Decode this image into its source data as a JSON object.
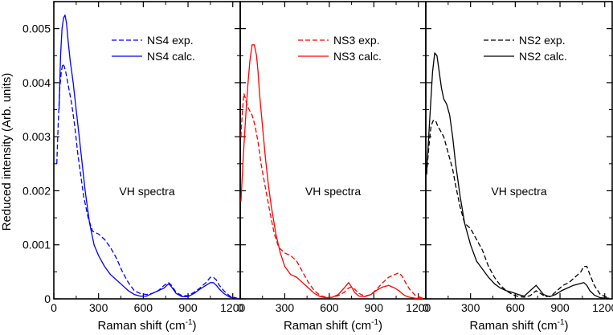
{
  "chart_data": {
    "type": "line",
    "ylabel": "Reduced intensity  (Arb. units)",
    "xlim": [
      0,
      1250
    ],
    "ylim": [
      0,
      0.0055
    ],
    "xticks": [
      0,
      300,
      600,
      900,
      1200
    ],
    "yticks": [
      0,
      0.001,
      0.002,
      0.003,
      0.004,
      0.005
    ],
    "xtick_labels": [
      "0",
      "300",
      "600",
      "900",
      "1200"
    ],
    "ytick_labels": [
      "0",
      "0.001",
      "0.002",
      "0.003",
      "0.004",
      "0.005"
    ],
    "panels": [
      {
        "id": "ns4",
        "annotation": "VH spectra",
        "xlabel": "Raman shift (cm-1)",
        "xlabel_main": "Raman shift (cm",
        "xlabel_sup": "-1",
        "xlabel_close": ")",
        "legend_position": "top-right",
        "series": [
          {
            "name": "NS4 exp.",
            "style": "dashed",
            "color": "#0000ff",
            "x": [
              20,
              30,
              40,
              50,
              60,
              70,
              80,
              100,
              120,
              140,
              160,
              180,
              200,
              230,
              260,
              300,
              340,
              380,
              420,
              460,
              500,
              540,
              580,
              620,
              660,
              700,
              740,
              770,
              790,
              820,
              860,
              900,
              940,
              980,
              1020,
              1050,
              1070,
              1090,
              1110,
              1140,
              1180,
              1230
            ],
            "y": [
              0.0025,
              0.0033,
              0.0039,
              0.0042,
              0.00435,
              0.0043,
              0.0042,
              0.0039,
              0.0036,
              0.0032,
              0.0027,
              0.0023,
              0.0019,
              0.0015,
              0.00125,
              0.0012,
              0.0011,
              0.00095,
              0.00075,
              0.0005,
              0.0003,
              0.00015,
              0.0001,
              8e-05,
              0.0001,
              0.00015,
              0.00025,
              0.0003,
              0.00025,
              0.00012,
              6e-05,
              6e-05,
              0.00012,
              0.0002,
              0.0003,
              0.0004,
              0.0004,
              0.00035,
              0.00025,
              0.00015,
              5e-05,
              1e-05
            ]
          },
          {
            "name": "NS4 calc.",
            "style": "solid",
            "color": "#0000ff",
            "x": [
              35,
              45,
              55,
              65,
              75,
              85,
              95,
              110,
              130,
              150,
              170,
              190,
              210,
              240,
              270,
              300,
              340,
              380,
              420,
              460,
              500,
              540,
              580,
              620,
              660,
              700,
              740,
              770,
              790,
              820,
              860,
              900,
              940,
              980,
              1020,
              1050,
              1070,
              1090,
              1110,
              1140,
              1180,
              1230
            ],
            "y": [
              0.0035,
              0.0045,
              0.005,
              0.0052,
              0.00525,
              0.0051,
              0.0048,
              0.0044,
              0.004,
              0.0035,
              0.003,
              0.0025,
              0.002,
              0.0014,
              0.001,
              0.0008,
              0.0006,
              0.00045,
              0.00035,
              0.00025,
              0.00015,
              8e-05,
              5e-05,
              5e-05,
              0.0001,
              0.00015,
              0.0002,
              0.00028,
              0.00022,
              0.0001,
              4e-05,
              4e-05,
              0.0001,
              0.00018,
              0.00025,
              0.0003,
              0.0003,
              0.00025,
              0.00018,
              0.0001,
              3e-05,
              1e-05
            ]
          }
        ]
      },
      {
        "id": "ns3",
        "annotation": "VH spectra",
        "xlabel": "Raman shift (cm-1)",
        "xlabel_main": "Raman shift (cm",
        "xlabel_sup": "-1",
        "xlabel_close": ")",
        "legend_position": "top-right",
        "series": [
          {
            "name": "NS3 exp.",
            "style": "dashed",
            "color": "#ff0000",
            "x": [
              5,
              15,
              25,
              35,
              45,
              60,
              80,
              100,
              120,
              140,
              160,
              180,
              200,
              230,
              260,
              300,
              340,
              380,
              420,
              460,
              500,
              540,
              580,
              620,
              660,
              700,
              730,
              750,
              770,
              800,
              840,
              880,
              920,
              960,
              1000,
              1040,
              1070,
              1090,
              1110,
              1140,
              1180,
              1230
            ],
            "y": [
              0.003,
              0.0035,
              0.0038,
              0.0037,
              0.0036,
              0.0035,
              0.0034,
              0.0032,
              0.0029,
              0.0025,
              0.0022,
              0.0019,
              0.0016,
              0.0012,
              0.00095,
              0.00085,
              0.0008,
              0.0007,
              0.0005,
              0.0003,
              0.00015,
              6e-05,
              3e-05,
              3e-05,
              6e-05,
              0.00012,
              0.0002,
              0.00022,
              0.00018,
              0.0001,
              5e-05,
              8e-05,
              0.00018,
              0.0003,
              0.0004,
              0.00045,
              0.00048,
              0.00042,
              0.00032,
              0.00018,
              6e-05,
              1e-05
            ]
          },
          {
            "name": "NS3 calc.",
            "style": "solid",
            "color": "#ff0000",
            "x": [
              5,
              20,
              35,
              50,
              65,
              80,
              95,
              110,
              120,
              130,
              150,
              170,
              190,
              210,
              240,
              270,
              300,
              340,
              380,
              420,
              460,
              500,
              540,
              580,
              620,
              660,
              700,
              730,
              750,
              770,
              800,
              840,
              880,
              920,
              960,
              1000,
              1040,
              1070,
              1090,
              1110,
              1140,
              1180,
              1230
            ],
            "y": [
              0.0018,
              0.0026,
              0.0033,
              0.0039,
              0.0044,
              0.0047,
              0.0047,
              0.0045,
              0.0042,
              0.0038,
              0.0032,
              0.0026,
              0.0021,
              0.0017,
              0.0012,
              0.00085,
              0.0006,
              0.00045,
              0.0004,
              0.0003,
              0.0002,
              0.0001,
              4e-05,
              2e-05,
              3e-05,
              8e-05,
              0.0002,
              0.0003,
              0.00022,
              0.00012,
              5e-05,
              4e-05,
              8e-05,
              0.00016,
              0.00022,
              0.00025,
              0.0002,
              0.00015,
              0.0001,
              6e-05,
              3e-05,
              1e-05,
              1e-05
            ]
          }
        ]
      },
      {
        "id": "ns2",
        "annotation": "VH spectra",
        "xlabel": "Raman shift (cm-1)",
        "xlabel_main": "Raman shift (cm",
        "xlabel_sup": "-1",
        "xlabel_close": ")",
        "legend_position": "top-right",
        "series": [
          {
            "name": "NS2 exp.",
            "style": "dashed",
            "color": "#000000",
            "x": [
              5,
              20,
              35,
              50,
              65,
              80,
              100,
              120,
              140,
              160,
              180,
              200,
              230,
              260,
              300,
              340,
              380,
              420,
              460,
              500,
              540,
              570,
              600,
              630,
              660,
              700,
              740,
              770,
              800,
              840,
              880,
              920,
              960,
              1000,
              1040,
              1060,
              1080,
              1100,
              1130,
              1170,
              1230
            ],
            "y": [
              0.0023,
              0.0028,
              0.0032,
              0.0033,
              0.0033,
              0.0032,
              0.0031,
              0.003,
              0.0028,
              0.0026,
              0.0024,
              0.0021,
              0.0017,
              0.0014,
              0.0013,
              0.0011,
              0.0009,
              0.0006,
              0.0004,
              0.00025,
              0.00015,
              0.0001,
              6e-05,
              4e-05,
              3e-05,
              6e-05,
              0.00015,
              0.0001,
              4e-05,
              5e-05,
              0.00015,
              0.00025,
              0.0003,
              0.0004,
              0.0005,
              0.0006,
              0.0006,
              0.00045,
              0.00025,
              8e-05,
              1e-05
            ]
          },
          {
            "name": "NS2 calc.",
            "style": "solid",
            "color": "#000000",
            "x": [
              5,
              15,
              30,
              45,
              60,
              75,
              90,
              105,
              120,
              140,
              160,
              180,
              200,
              230,
              260,
              300,
              340,
              380,
              420,
              460,
              500,
              540,
              580,
              620,
              660,
              700,
              740,
              760,
              790,
              830,
              870,
              910,
              950,
              990,
              1030,
              1060,
              1080,
              1100,
              1130,
              1170,
              1230
            ],
            "y": [
              0.0023,
              0.0028,
              0.0035,
              0.0042,
              0.00455,
              0.0045,
              0.0042,
              0.0039,
              0.0037,
              0.0036,
              0.0034,
              0.003,
              0.0025,
              0.0019,
              0.0014,
              0.001,
              0.0007,
              0.00055,
              0.0004,
              0.00028,
              0.0002,
              0.00015,
              0.00012,
              8e-05,
              5e-05,
              0.00015,
              0.00025,
              0.00018,
              8e-05,
              4e-05,
              8e-05,
              0.00015,
              0.0002,
              0.00025,
              0.00028,
              0.0003,
              0.00025,
              0.00015,
              7e-05,
              2e-05,
              1e-05
            ]
          }
        ]
      }
    ]
  }
}
